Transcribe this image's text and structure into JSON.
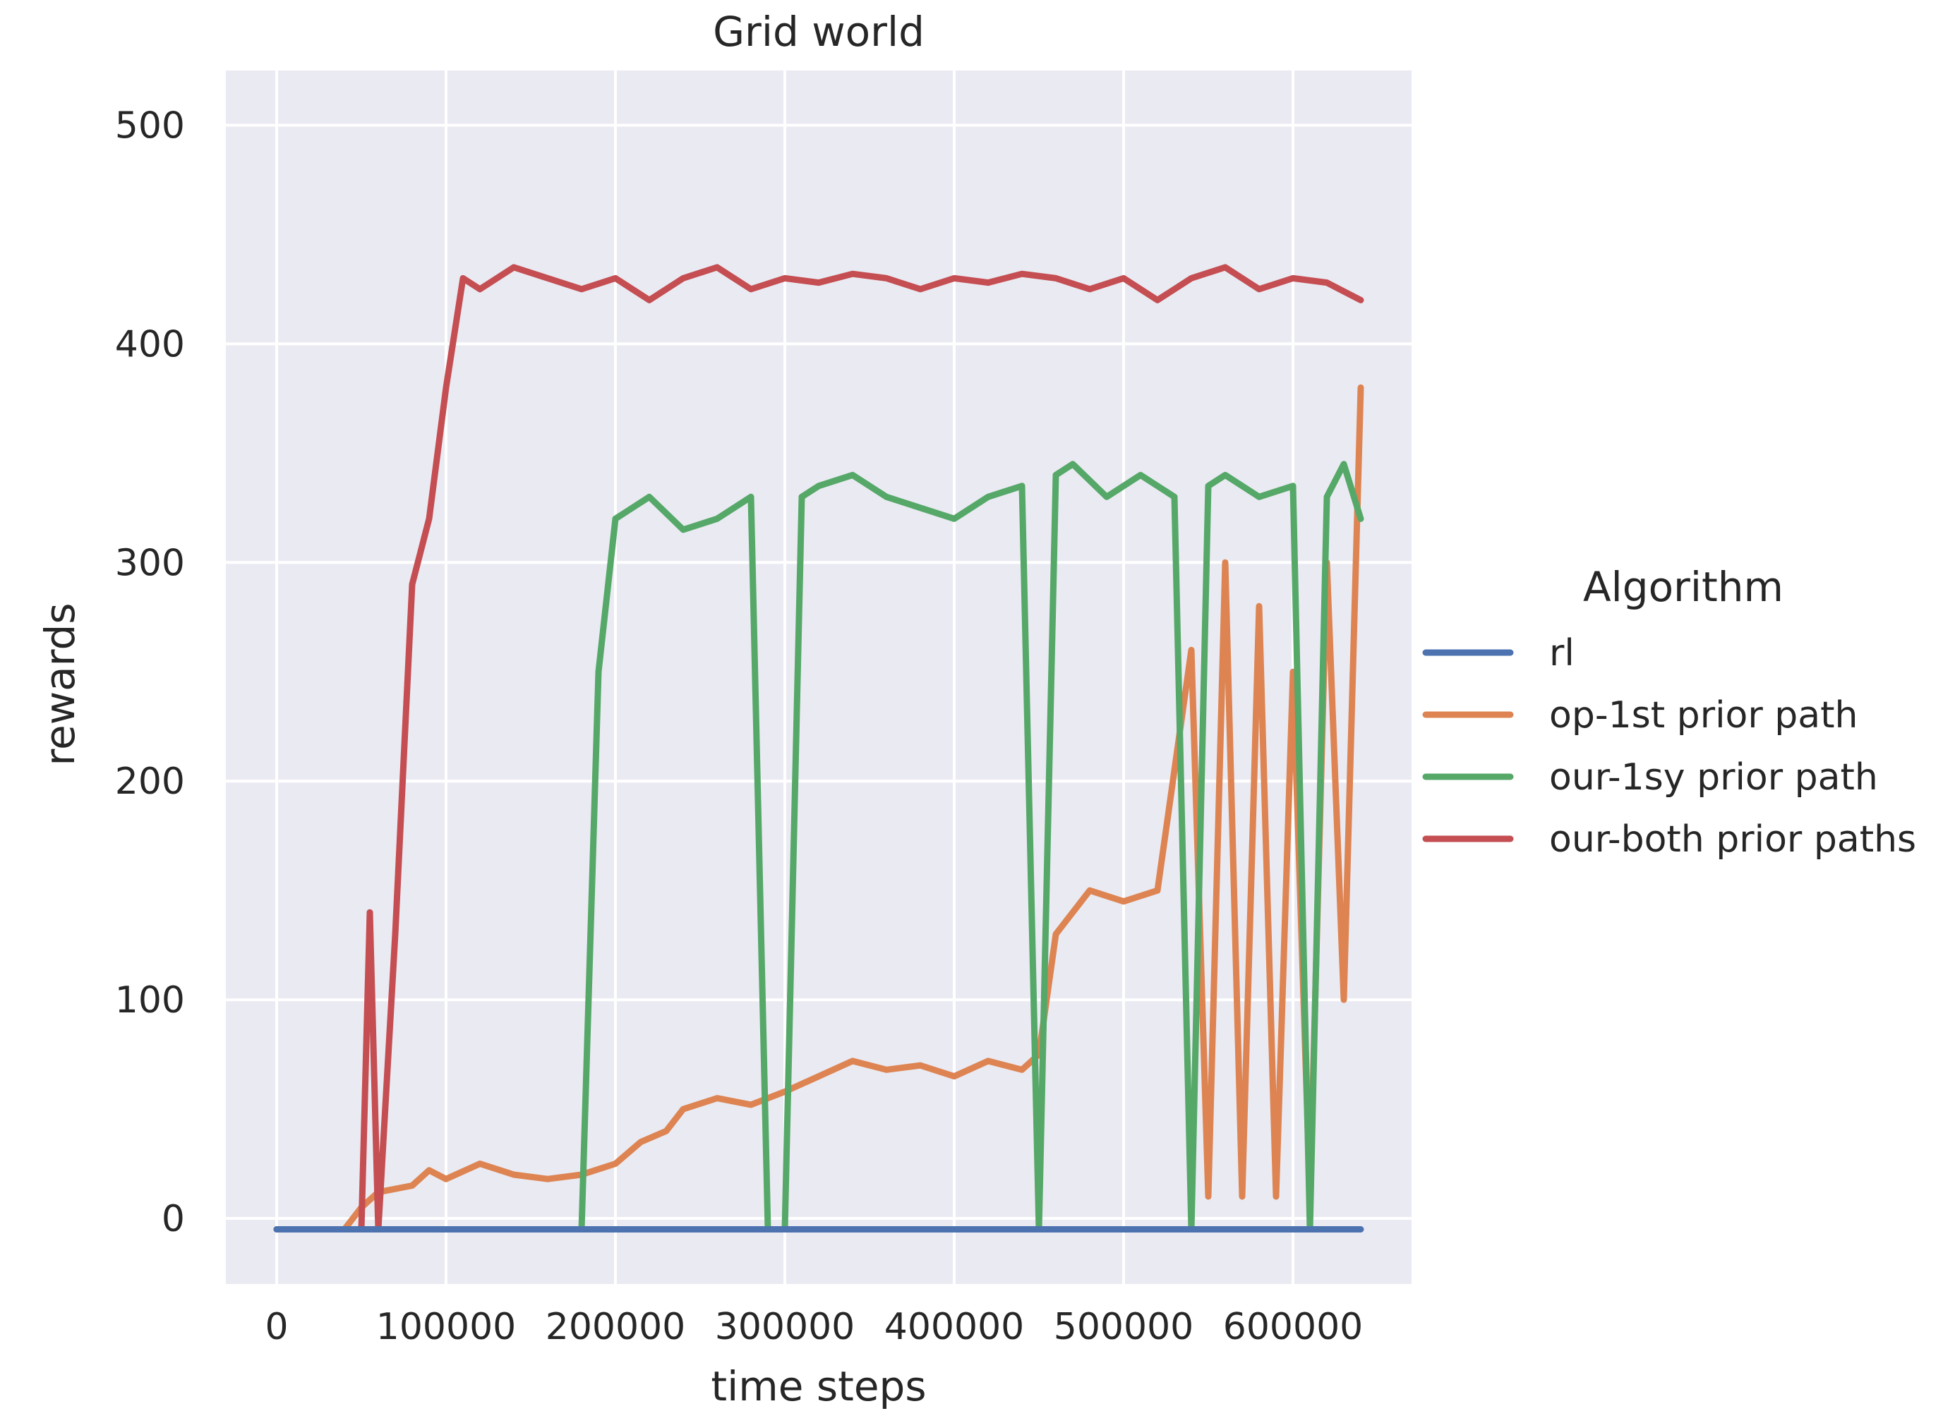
{
  "chart_data": {
    "type": "line",
    "title": "Grid world",
    "xlabel": "time steps",
    "ylabel": "rewards",
    "xlim": [
      -30000,
      670000
    ],
    "ylim": [
      -30,
      525
    ],
    "xticks": [
      0,
      100000,
      200000,
      300000,
      400000,
      500000,
      600000
    ],
    "yticks": [
      0,
      100,
      200,
      300,
      400,
      500
    ],
    "grid": true,
    "legend": {
      "title": "Algorithm",
      "placement": "right-outside"
    },
    "series": [
      {
        "name": "rl",
        "color": "#4c72b0",
        "x": [
          0,
          640000
        ],
        "y": [
          -5,
          -5
        ]
      },
      {
        "name": "op-1st prior path",
        "color": "#dd8452",
        "x": [
          0,
          40000,
          50000,
          60000,
          80000,
          90000,
          100000,
          120000,
          140000,
          160000,
          180000,
          200000,
          215000,
          230000,
          240000,
          260000,
          280000,
          300000,
          320000,
          340000,
          360000,
          380000,
          400000,
          420000,
          440000,
          450000,
          460000,
          480000,
          500000,
          520000,
          540000,
          550000,
          560000,
          570000,
          580000,
          590000,
          600000,
          610000,
          620000,
          630000,
          640000
        ],
        "y": [
          -5,
          -5,
          5,
          12,
          15,
          22,
          18,
          25,
          20,
          18,
          20,
          25,
          35,
          40,
          50,
          55,
          52,
          58,
          65,
          72,
          68,
          70,
          65,
          72,
          68,
          75,
          130,
          150,
          145,
          150,
          260,
          10,
          300,
          10,
          280,
          10,
          250,
          10,
          300,
          100,
          380
        ]
      },
      {
        "name": "our-1sy prior path",
        "color": "#55a868",
        "x": [
          0,
          180000,
          190000,
          200000,
          220000,
          240000,
          260000,
          280000,
          290000,
          300000,
          310000,
          320000,
          340000,
          360000,
          380000,
          400000,
          420000,
          440000,
          450000,
          460000,
          470000,
          490000,
          510000,
          530000,
          540000,
          550000,
          560000,
          580000,
          600000,
          610000,
          620000,
          630000,
          640000
        ],
        "y": [
          -5,
          -5,
          250,
          320,
          330,
          315,
          320,
          330,
          -5,
          -5,
          330,
          335,
          340,
          330,
          325,
          320,
          330,
          335,
          -5,
          340,
          345,
          330,
          340,
          330,
          -5,
          335,
          340,
          330,
          335,
          -5,
          330,
          345,
          320
        ]
      },
      {
        "name": "our-both prior paths",
        "color": "#c44e52",
        "x": [
          0,
          40000,
          50000,
          55000,
          60000,
          70000,
          80000,
          90000,
          100000,
          110000,
          120000,
          140000,
          160000,
          180000,
          200000,
          220000,
          240000,
          260000,
          280000,
          300000,
          320000,
          340000,
          360000,
          380000,
          400000,
          420000,
          440000,
          460000,
          480000,
          500000,
          520000,
          540000,
          560000,
          580000,
          600000,
          620000,
          640000
        ],
        "y": [
          -5,
          -5,
          -5,
          140,
          -5,
          130,
          290,
          320,
          380,
          430,
          425,
          435,
          430,
          425,
          430,
          420,
          430,
          435,
          425,
          430,
          428,
          432,
          430,
          425,
          430,
          428,
          432,
          430,
          425,
          430,
          420,
          430,
          435,
          425,
          430,
          428,
          420
        ]
      }
    ]
  }
}
